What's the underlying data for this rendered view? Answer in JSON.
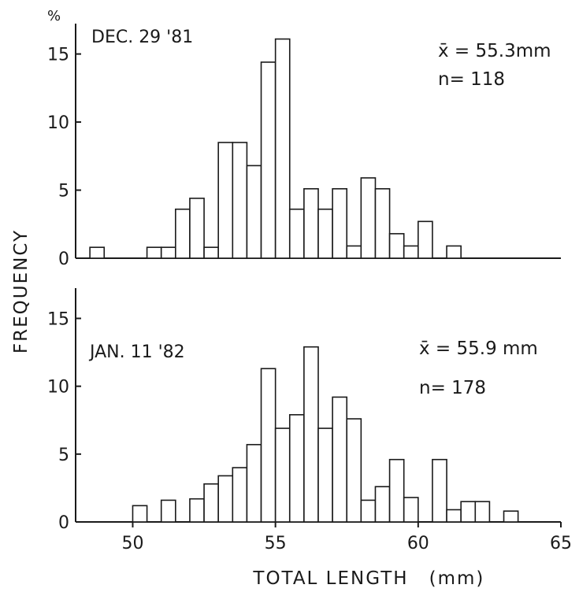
{
  "chart_data": [
    {
      "type": "bar",
      "panel": "top",
      "label": "DEC. 29 '81",
      "stats": [
        "x̄ = 55.3mm",
        "n= 118"
      ],
      "bin_width": 0.5,
      "x": [
        48.5,
        49.0,
        49.5,
        50.0,
        50.5,
        51.0,
        51.5,
        52.0,
        52.5,
        53.0,
        53.5,
        54.0,
        54.5,
        55.0,
        55.5,
        56.0,
        56.5,
        57.0,
        57.5,
        58.0,
        58.5,
        59.0,
        59.5,
        60.0,
        60.5,
        61.0,
        61.5
      ],
      "values": [
        0.8,
        0,
        0,
        0,
        0.8,
        0.8,
        3.6,
        4.4,
        0.8,
        8.5,
        8.5,
        6.8,
        14.4,
        16.1,
        3.6,
        5.1,
        3.6,
        5.1,
        0.9,
        5.9,
        5.1,
        1.8,
        0.9,
        2.7,
        0,
        0.9,
        0
      ],
      "ylabel_unit": "%",
      "yticks": [
        0,
        5,
        10,
        15
      ],
      "ylim": [
        0,
        17
      ],
      "xlim": [
        48,
        65
      ]
    },
    {
      "type": "bar",
      "panel": "bottom",
      "label": "JAN. 11 '82",
      "stats": [
        "x̄ = 55.9 mm",
        "n= 178"
      ],
      "bin_width": 0.5,
      "x": [
        50.0,
        50.5,
        51.0,
        51.5,
        52.0,
        52.5,
        53.0,
        53.5,
        54.0,
        54.5,
        55.0,
        55.5,
        56.0,
        56.5,
        57.0,
        57.5,
        58.0,
        58.5,
        59.0,
        59.5,
        60.0,
        60.5,
        61.0,
        61.5,
        62.0,
        62.5,
        63.0
      ],
      "values": [
        1.2,
        0,
        1.6,
        0,
        1.7,
        2.8,
        3.4,
        4.0,
        5.7,
        11.3,
        6.9,
        7.9,
        12.9,
        6.9,
        9.2,
        7.6,
        1.6,
        2.6,
        4.6,
        1.8,
        0,
        4.6,
        0.9,
        1.5,
        1.5,
        0,
        0.8
      ],
      "yticks": [
        0,
        5,
        10,
        15
      ],
      "ylim": [
        0,
        17
      ],
      "xlim": [
        48,
        65
      ],
      "xticks": [
        50,
        55,
        60,
        65
      ]
    }
  ],
  "ylabel": "FREQUENCY",
  "xlabel": "TOTAL LENGTH",
  "xunit": "(mm)",
  "colors": {
    "ink": "#1a1a1a",
    "bar_fill": "#ffffff"
  }
}
